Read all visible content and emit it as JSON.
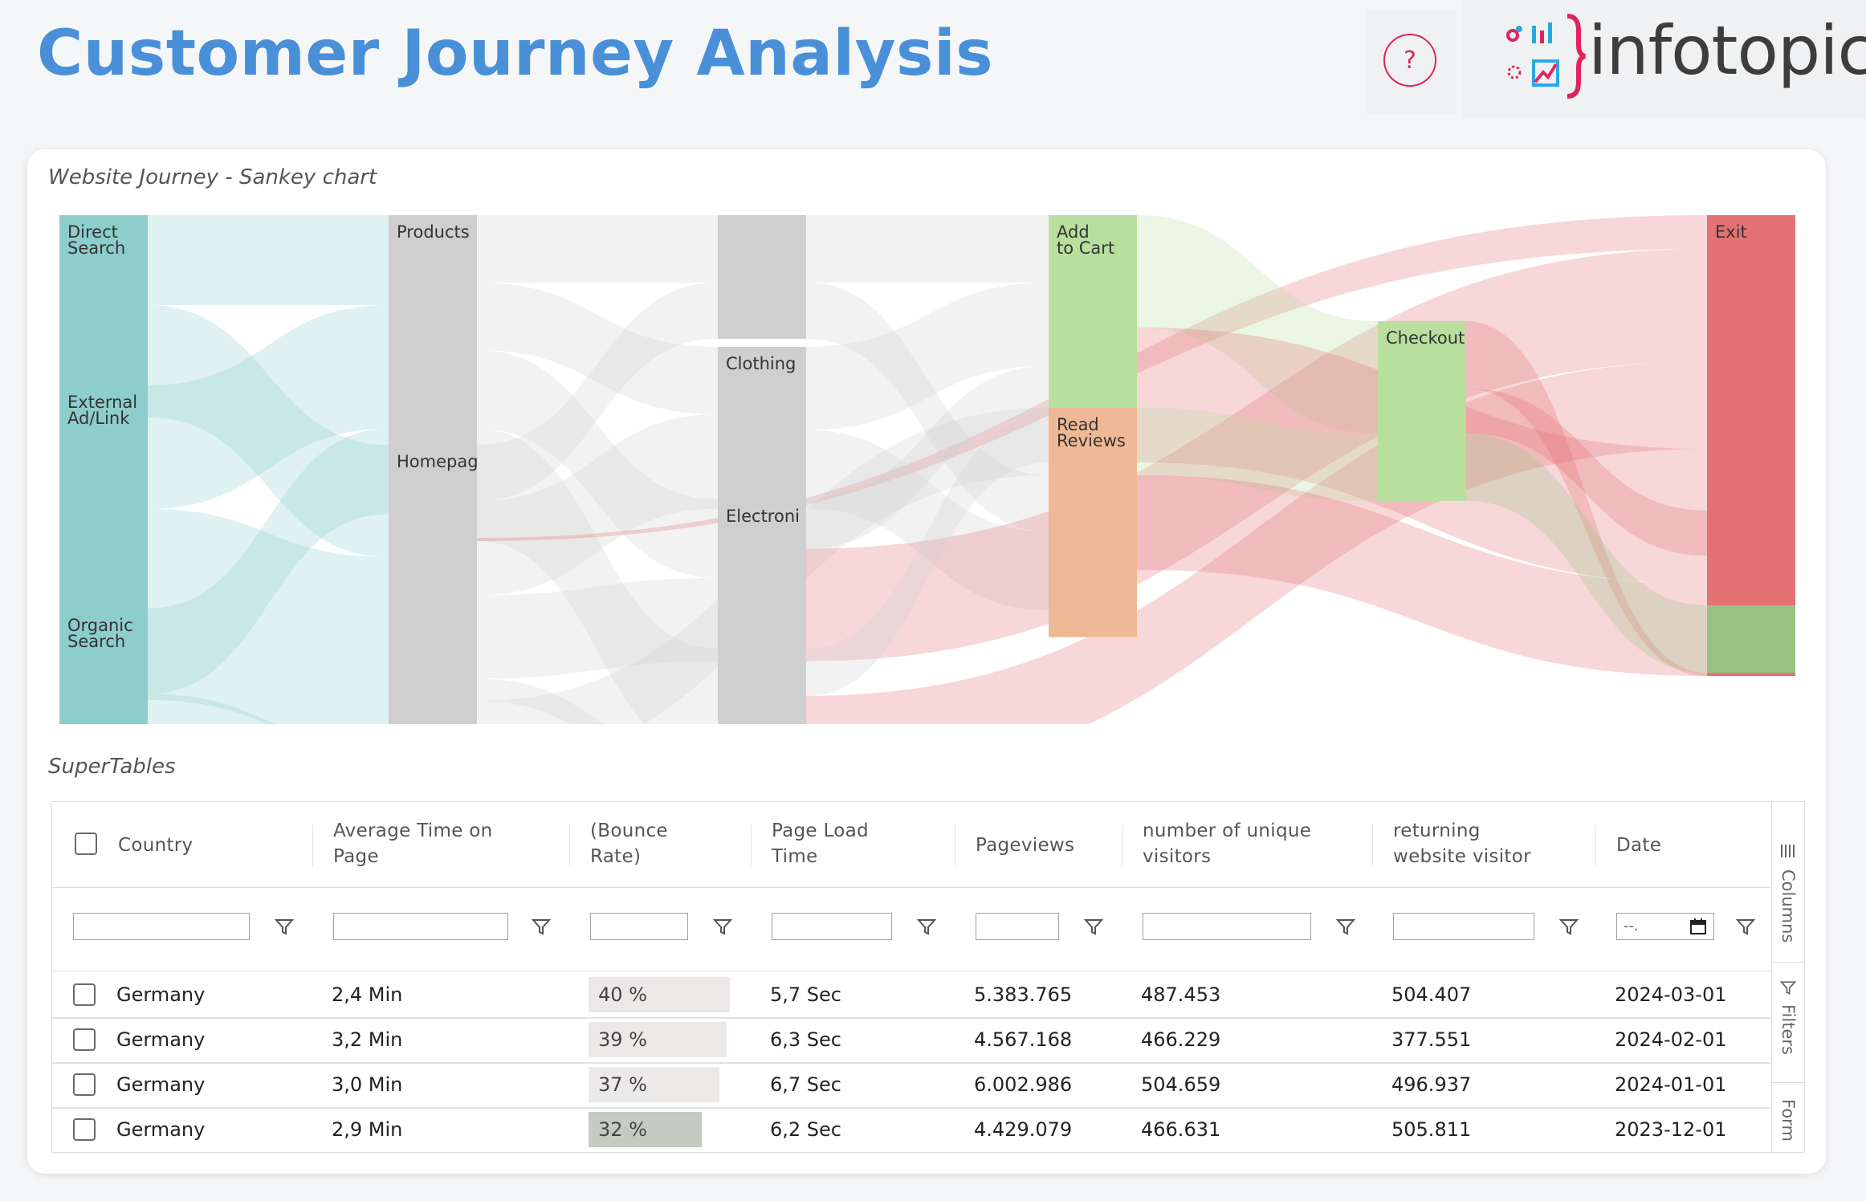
{
  "header": {
    "title": "Customer Journey Analysis",
    "help_label": "?",
    "logo_text": "infotopics",
    "brand_color": "#e0245e"
  },
  "sankey_section": {
    "label": "Website Journey - Sankey chart"
  },
  "chart_data": {
    "type": "sankey",
    "title": "Website Journey - Sankey chart",
    "nodes": [
      {
        "id": "direct",
        "label": "Direct Search",
        "stage": 0,
        "value": 90,
        "color": "#8dcdcb"
      },
      {
        "id": "external",
        "label": "External Ad/Link",
        "stage": 0,
        "value": 140,
        "color": "#8dcdcb"
      },
      {
        "id": "organic",
        "label": "Organic Search",
        "stage": 0,
        "value": 100,
        "color": "#8dcdcb"
      },
      {
        "id": "products",
        "label": "Products",
        "stage": 1,
        "value": 145,
        "color": "#cfcfcf"
      },
      {
        "id": "homepage",
        "label": "Homepag",
        "stage": 1,
        "value": 212,
        "color": "#cfcfcf"
      },
      {
        "id": "cat1",
        "label": "",
        "stage": 2,
        "value": 55,
        "color": "#cfcfcf"
      },
      {
        "id": "clothing",
        "label": "Clothing",
        "stage": 2,
        "value": 72,
        "color": "#cfcfcf"
      },
      {
        "id": "electronics",
        "label": "Electroni",
        "stage": 2,
        "value": 72,
        "color": "#cfcfcf"
      },
      {
        "id": "cat4",
        "label": "",
        "stage": 2,
        "value": 60,
        "color": "#cfcfcf"
      },
      {
        "id": "addcart",
        "label": "Add to Cart",
        "stage": 3,
        "value": 110,
        "color": "#b8df9e"
      },
      {
        "id": "reviews",
        "label": "Read Reviews",
        "stage": 3,
        "value": 102,
        "color": "#f0b995"
      },
      {
        "id": "checkout",
        "label": "Checkout",
        "stage": 4,
        "value": 80,
        "color": "#b8df9e"
      },
      {
        "id": "exit",
        "label": "Exit",
        "stage": 5,
        "value": 205,
        "color": "#e47174"
      },
      {
        "id": "exit2",
        "label": "",
        "stage": 5,
        "value": 20,
        "color": "#e47174"
      },
      {
        "id": "purchase",
        "label": "",
        "stage": 5,
        "value": 30,
        "color": "#9bc285"
      }
    ],
    "links": [
      {
        "source": "direct",
        "target": "products",
        "value": 40
      },
      {
        "source": "direct",
        "target": "homepage",
        "value": 50
      },
      {
        "source": "external",
        "target": "products",
        "value": 55
      },
      {
        "source": "external",
        "target": "homepage",
        "value": 85
      },
      {
        "source": "organic",
        "target": "products",
        "value": 38
      },
      {
        "source": "organic",
        "target": "homepage",
        "value": 62
      },
      {
        "source": "products",
        "target": "cat1",
        "value": 30
      },
      {
        "source": "products",
        "target": "clothing",
        "value": 30
      },
      {
        "source": "products",
        "target": "electronics",
        "value": 35
      },
      {
        "source": "products",
        "target": "cat4",
        "value": 50
      },
      {
        "source": "homepage",
        "target": "cat1",
        "value": 25
      },
      {
        "source": "homepage",
        "target": "clothing",
        "value": 42
      },
      {
        "source": "homepage",
        "target": "electronics",
        "value": 37
      },
      {
        "source": "homepage",
        "target": "cat4",
        "value": 10
      },
      {
        "source": "homepage",
        "target": "reviews",
        "value": 30
      },
      {
        "source": "products",
        "target": "exit",
        "value": 15
      },
      {
        "source": "cat1",
        "target": "addcart",
        "value": 30
      },
      {
        "source": "cat1",
        "target": "reviews",
        "value": 25
      },
      {
        "source": "clothing",
        "target": "addcart",
        "value": 37
      },
      {
        "source": "clothing",
        "target": "reviews",
        "value": 35
      },
      {
        "source": "electronics",
        "target": "addcart",
        "value": 22
      },
      {
        "source": "electronics",
        "target": "exit",
        "value": 50
      },
      {
        "source": "cat4",
        "target": "addcart",
        "value": 21
      },
      {
        "source": "cat4",
        "target": "exit",
        "value": 39
      },
      {
        "source": "addcart",
        "target": "checkout",
        "value": 50
      },
      {
        "source": "addcart",
        "target": "exit",
        "value": 60
      },
      {
        "source": "reviews",
        "target": "checkout",
        "value": 30
      },
      {
        "source": "reviews",
        "target": "exit",
        "value": 42
      },
      {
        "source": "checkout",
        "target": "exit",
        "value": 30
      },
      {
        "source": "checkout",
        "target": "exit2",
        "value": 20
      },
      {
        "source": "checkout",
        "target": "purchase",
        "value": 30
      }
    ]
  },
  "table_section": {
    "label": "SuperTables"
  },
  "table": {
    "columns": [
      "Country",
      "Average Time on Page",
      "(Bounce Rate)",
      "Page Load Time",
      "Pageviews",
      "number of unique visitors",
      "returning website visitor",
      "Date"
    ],
    "date_filter_placeholder": "--.",
    "rows": [
      {
        "country": "Germany",
        "avg_time": "2,4 Min",
        "bounce": "40 %",
        "bounce_value": 40,
        "load": "5,7 Sec",
        "pageviews": "5.383.765",
        "unique": "487.453",
        "returning": "504.407",
        "date": "2024-03-01",
        "bounce_color": "#ece8e8"
      },
      {
        "country": "Germany",
        "avg_time": "3,2 Min",
        "bounce": "39 %",
        "bounce_value": 39,
        "load": "6,3 Sec",
        "pageviews": "4.567.168",
        "unique": "466.229",
        "returning": "377.551",
        "date": "2024-02-01",
        "bounce_color": "#ece8e8"
      },
      {
        "country": "Germany",
        "avg_time": "3,0 Min",
        "bounce": "37 %",
        "bounce_value": 37,
        "load": "6,7 Sec",
        "pageviews": "6.002.986",
        "unique": "504.659",
        "returning": "496.937",
        "date": "2024-01-01",
        "bounce_color": "#ece9e9"
      },
      {
        "country": "Germany",
        "avg_time": "2,9 Min",
        "bounce": "32 %",
        "bounce_value": 32,
        "load": "6,2 Sec",
        "pageviews": "4.429.079",
        "unique": "466.631",
        "returning": "505.811",
        "date": "2023-12-01",
        "bounce_color": "#c6cbc2"
      }
    ],
    "side_tabs": [
      "Columns",
      "Filters",
      "Form"
    ]
  }
}
